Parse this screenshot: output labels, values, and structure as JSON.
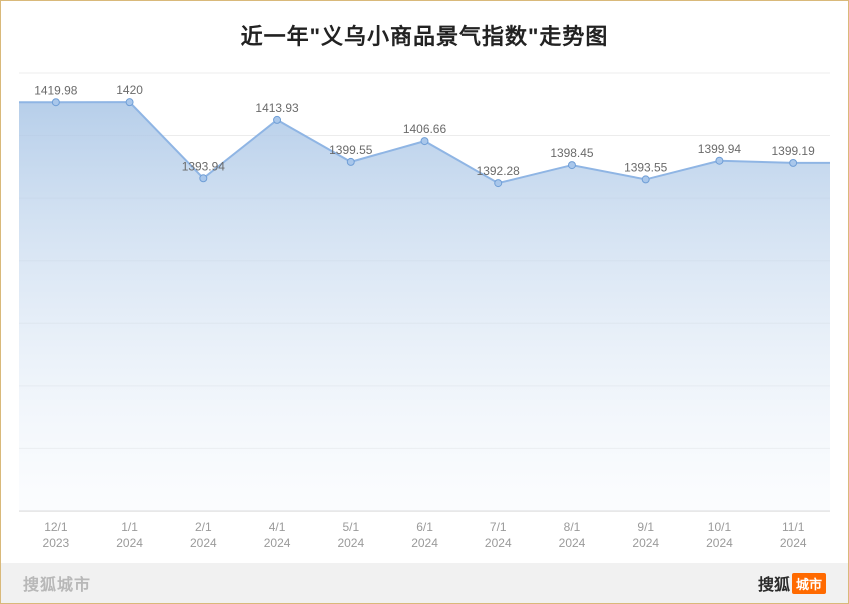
{
  "chart": {
    "type": "area",
    "title": "近一年\"义乌小商品景气指数\"走势图",
    "title_fontsize": 22,
    "background_color": "#ffffff",
    "grid_color": "#ececec",
    "baseline_color": "#d0d0d0",
    "line_color": "#8fb5e4",
    "line_width": 2,
    "marker_color": "#a9c7eb",
    "marker_border": "#6f9ed6",
    "marker_radius": 3.5,
    "area_gradient_top": "#aac6e6",
    "area_gradient_bottom": "#f3f7fc",
    "value_label_color": "#6a6a6a",
    "value_label_fontsize": 12,
    "axis_label_color": "#9a9a9a",
    "axis_label_fontsize": 12,
    "ylim_min": 1280,
    "ylim_max": 1430,
    "grid_rows": 7,
    "points": [
      {
        "date_top": "12/1",
        "date_bottom": "2023",
        "value": 1419.98
      },
      {
        "date_top": "1/1",
        "date_bottom": "2024",
        "value": 1420
      },
      {
        "date_top": "2/1",
        "date_bottom": "2024",
        "value": 1393.94
      },
      {
        "date_top": "4/1",
        "date_bottom": "2024",
        "value": 1413.93
      },
      {
        "date_top": "5/1",
        "date_bottom": "2024",
        "value": 1399.55
      },
      {
        "date_top": "6/1",
        "date_bottom": "2024",
        "value": 1406.66
      },
      {
        "date_top": "7/1",
        "date_bottom": "2024",
        "value": 1392.28
      },
      {
        "date_top": "8/1",
        "date_bottom": "2024",
        "value": 1398.45
      },
      {
        "date_top": "9/1",
        "date_bottom": "2024",
        "value": 1393.55
      },
      {
        "date_top": "10/1",
        "date_bottom": "2024",
        "value": 1399.94
      },
      {
        "date_top": "11/1",
        "date_bottom": "2024",
        "value": 1399.19
      }
    ]
  },
  "footer": {
    "left_text": "搜狐城市",
    "right_brand": "搜狐",
    "right_tag": "城市",
    "bg_color": "#f1f1f1",
    "tag_bg": "#ff6a00"
  }
}
